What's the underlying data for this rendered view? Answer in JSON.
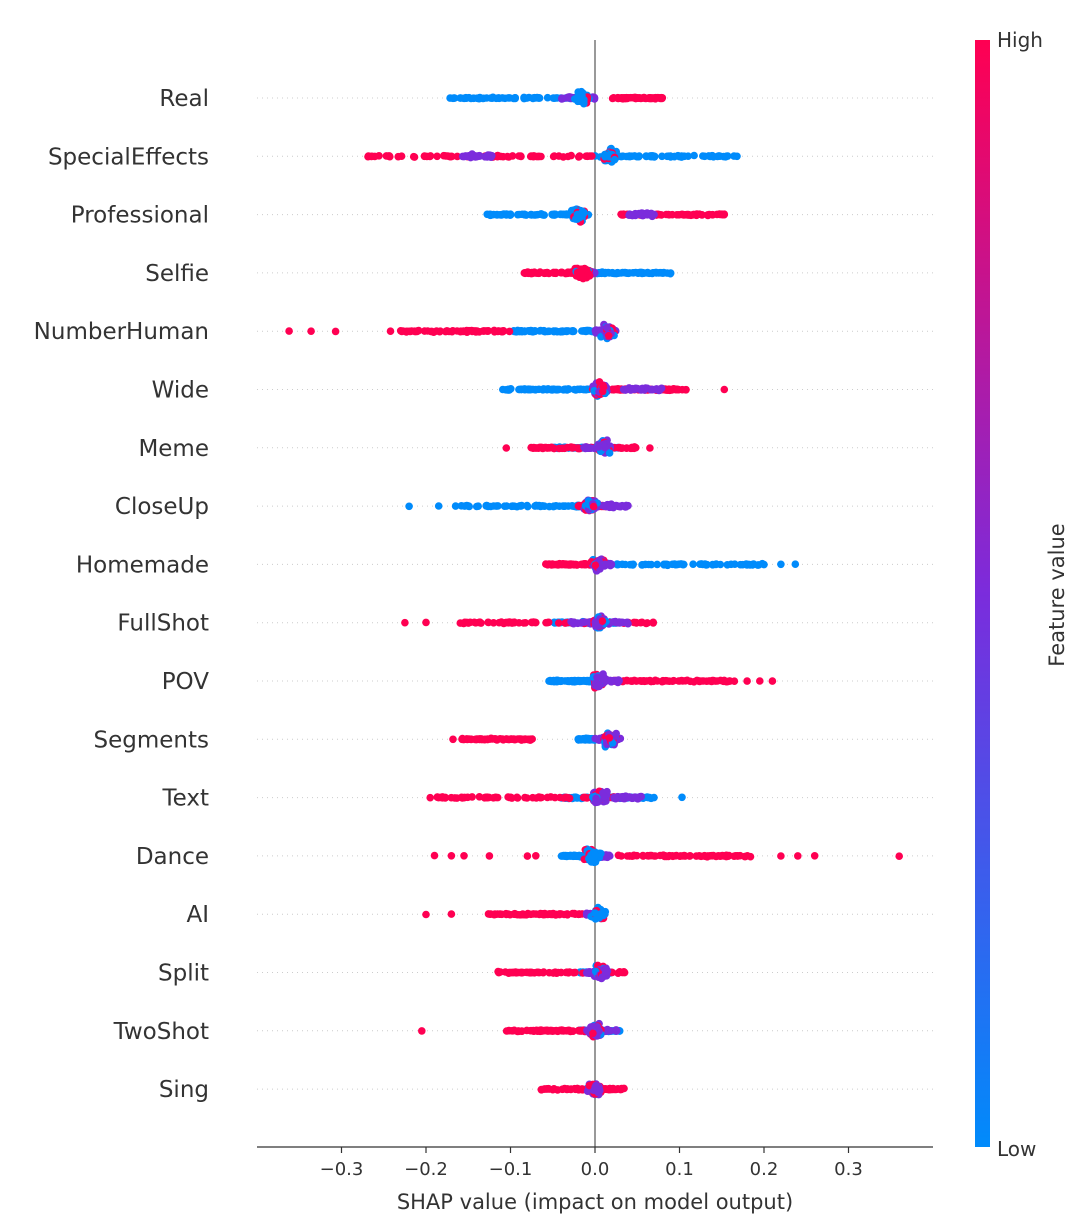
{
  "chart_data": {
    "type": "scatter",
    "subtype": "shap-beeswarm-summary",
    "title": "",
    "xlabel": "SHAP value (impact on model output)",
    "ylabel": "",
    "xlim": [
      -0.4,
      0.4
    ],
    "xticks": [
      -0.3,
      -0.2,
      -0.1,
      0.0,
      0.1,
      0.2,
      0.3
    ],
    "xtick_labels": [
      "−0.3",
      "−0.2",
      "−0.1",
      "0.0",
      "0.1",
      "0.2",
      "0.3"
    ],
    "grid": false,
    "zero_line": true,
    "colorbar": {
      "label": "Feature value",
      "high_label": "High",
      "low_label": "Low",
      "colors": [
        "#008bfb",
        "#7b2cdc",
        "#ff0052"
      ]
    },
    "features": [
      {
        "name": "Real",
        "range": [
          -0.175,
          0.08
        ],
        "low_range": [
          -0.175,
          0.0
        ],
        "high_range": [
          0.02,
          0.08
        ],
        "mid_range": [
          -0.04,
          0.0
        ],
        "peak": -0.015,
        "outliers_low": [],
        "outliers_high": []
      },
      {
        "name": "SpecialEffects",
        "range": [
          -0.27,
          0.17
        ],
        "low_range": [
          0.0,
          0.17
        ],
        "high_range": [
          -0.27,
          0.0
        ],
        "mid_range": [
          -0.16,
          -0.12
        ],
        "peak": 0.018,
        "outliers_low": [
          0.168
        ],
        "outliers_high": []
      },
      {
        "name": "Professional",
        "range": [
          -0.13,
          0.155
        ],
        "low_range": [
          -0.13,
          0.0
        ],
        "high_range": [
          0.03,
          0.155
        ],
        "mid_range": [
          0.04,
          0.07
        ],
        "peak": -0.02,
        "outliers_low": [],
        "outliers_high": [
          0.153
        ]
      },
      {
        "name": "Selfie",
        "range": [
          -0.085,
          0.09
        ],
        "low_range": [
          0.0,
          0.09
        ],
        "high_range": [
          -0.085,
          0.0
        ],
        "mid_range": [
          -0.02,
          0.0
        ],
        "peak": -0.015,
        "outliers_low": [],
        "outliers_high": []
      },
      {
        "name": "NumberHuman",
        "range": [
          -0.37,
          0.05
        ],
        "low_range": [
          -0.1,
          0.0
        ],
        "high_range": [
          -0.23,
          -0.1
        ],
        "mid_range": [
          0.0,
          0.025
        ],
        "peak": 0.015,
        "outliers_low": [],
        "outliers_high": [
          -0.362,
          -0.336,
          -0.307,
          -0.242
        ]
      },
      {
        "name": "Wide",
        "range": [
          -0.11,
          0.155
        ],
        "low_range": [
          -0.11,
          0.0
        ],
        "high_range": [
          0.02,
          0.11
        ],
        "mid_range": [
          0.03,
          0.08
        ],
        "peak": 0.005,
        "outliers_low": [],
        "outliers_high": [
          0.153
        ]
      },
      {
        "name": "Meme",
        "range": [
          -0.105,
          0.065
        ],
        "low_range": [
          -0.05,
          0.03
        ],
        "high_range": [
          -0.08,
          0.05
        ],
        "mid_range": [
          -0.02,
          0.02
        ],
        "peak": 0.01,
        "outliers_low": [],
        "outliers_high": [
          -0.105,
          0.065
        ]
      },
      {
        "name": "CloseUp",
        "range": [
          -0.22,
          0.055
        ],
        "low_range": [
          -0.16,
          0.0
        ],
        "high_range": [
          -0.02,
          0.02
        ],
        "mid_range": [
          0.01,
          0.04
        ],
        "peak": -0.005,
        "outliers_low": [
          -0.22,
          -0.185,
          -0.165
        ],
        "outliers_high": []
      },
      {
        "name": "Homemade",
        "range": [
          -0.065,
          0.24
        ],
        "low_range": [
          0.0,
          0.2
        ],
        "high_range": [
          -0.06,
          0.01
        ],
        "mid_range": [
          0.0,
          0.02
        ],
        "peak": 0.005,
        "outliers_low": [
          0.2,
          0.22,
          0.237
        ],
        "outliers_high": []
      },
      {
        "name": "FullShot",
        "range": [
          -0.225,
          0.07
        ],
        "low_range": [
          -0.05,
          0.03
        ],
        "high_range": [
          -0.16,
          0.07
        ],
        "mid_range": [
          -0.03,
          0.04
        ],
        "peak": 0.005,
        "outliers_low": [],
        "outliers_high": [
          -0.225,
          -0.2,
          -0.12,
          -0.09,
          -0.07
        ]
      },
      {
        "name": "POV",
        "range": [
          -0.055,
          0.21
        ],
        "low_range": [
          -0.055,
          0.0
        ],
        "high_range": [
          0.02,
          0.16
        ],
        "mid_range": [
          0.0,
          0.03
        ],
        "peak": 0.005,
        "outliers_low": [],
        "outliers_high": [
          0.165,
          0.18,
          0.195,
          0.21
        ]
      },
      {
        "name": "Segments",
        "range": [
          -0.17,
          0.045
        ],
        "low_range": [
          -0.02,
          0.0
        ],
        "high_range": [
          -0.16,
          -0.07
        ],
        "mid_range": [
          0.0,
          0.03
        ],
        "peak": 0.018,
        "outliers_low": [],
        "outliers_high": [
          -0.168
        ]
      },
      {
        "name": "Text",
        "range": [
          -0.195,
          0.105
        ],
        "low_range": [
          -0.04,
          0.07
        ],
        "high_range": [
          -0.19,
          0.03
        ],
        "mid_range": [
          0.02,
          0.06
        ],
        "peak": 0.005,
        "outliers_low": [
          0.103
        ],
        "outliers_high": [
          -0.195,
          -0.13,
          -0.1
        ]
      },
      {
        "name": "Dance",
        "range": [
          -0.19,
          0.36
        ],
        "low_range": [
          -0.04,
          0.0
        ],
        "high_range": [
          0.02,
          0.19
        ],
        "mid_range": [
          0.0,
          0.02
        ],
        "peak": -0.003,
        "outliers_low": [],
        "outliers_high": [
          -0.19,
          -0.17,
          -0.155,
          -0.125,
          -0.08,
          -0.07,
          0.22,
          0.24,
          0.26,
          0.36
        ]
      },
      {
        "name": "AI",
        "range": [
          -0.2,
          0.012
        ],
        "low_range": [
          -0.005,
          0.01
        ],
        "high_range": [
          -0.13,
          0.0
        ],
        "mid_range": [
          -0.01,
          0.005
        ],
        "peak": 0.005,
        "outliers_low": [],
        "outliers_high": [
          -0.2,
          -0.17
        ]
      },
      {
        "name": "Split",
        "range": [
          -0.115,
          0.035
        ],
        "low_range": [
          -0.02,
          0.02
        ],
        "high_range": [
          -0.115,
          0.035
        ],
        "mid_range": [
          -0.01,
          0.01
        ],
        "peak": 0.007,
        "outliers_low": [],
        "outliers_high": []
      },
      {
        "name": "TwoShot",
        "range": [
          -0.205,
          0.042
        ],
        "low_range": [
          -0.02,
          0.03
        ],
        "high_range": [
          -0.11,
          0.0
        ],
        "mid_range": [
          -0.01,
          0.03
        ],
        "peak": 0.0,
        "outliers_low": [],
        "outliers_high": [
          -0.205
        ]
      },
      {
        "name": "Sing",
        "range": [
          -0.065,
          0.035
        ],
        "low_range": [
          -0.01,
          0.01
        ],
        "high_range": [
          -0.065,
          0.035
        ],
        "mid_range": [
          -0.005,
          0.005
        ],
        "peak": 0.0,
        "outliers_low": [],
        "outliers_high": []
      }
    ]
  }
}
